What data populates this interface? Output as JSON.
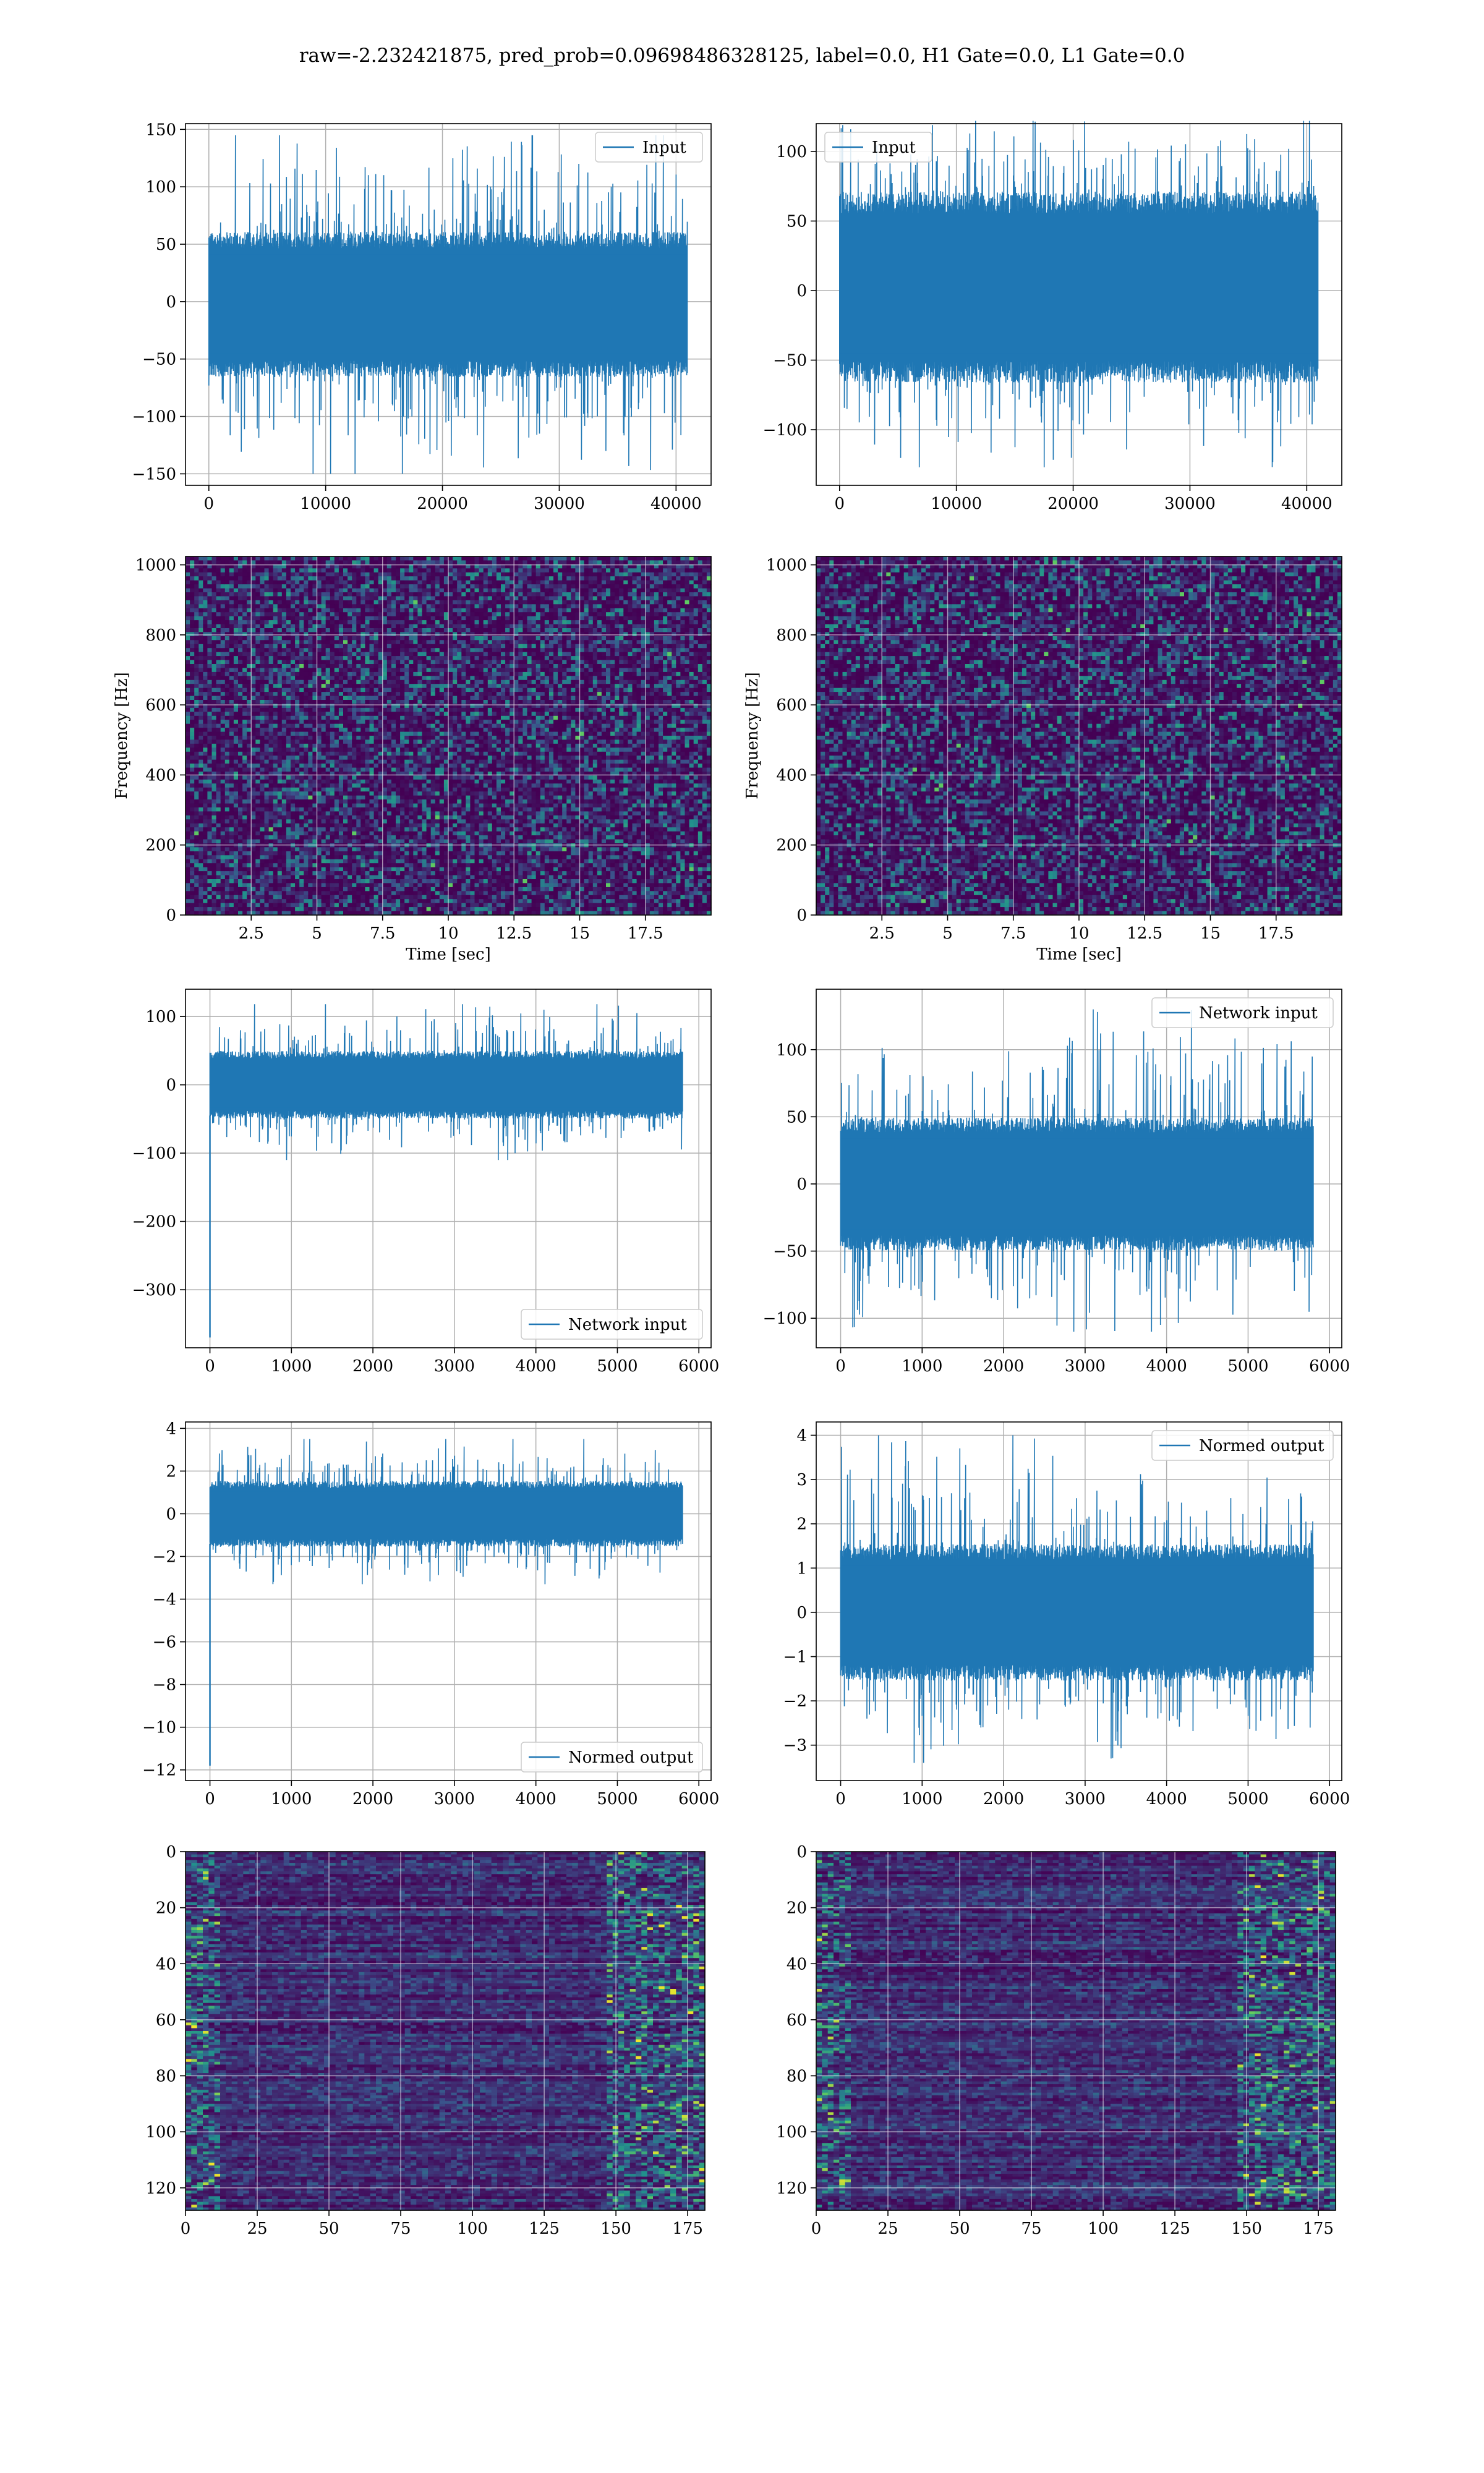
{
  "figure_title": "raw=-2.232421875, pred_prob=0.09698486328125, label=0.0, H1 Gate=0.0, L1 Gate=0.0",
  "colors": {
    "line": "#1f77b4",
    "grid": "#b0b0b0",
    "viridis_bg": "#3b1f5e"
  },
  "chart_data": [
    {
      "id": "raw-left",
      "type": "line",
      "legend": "Input",
      "legend_loc": "upper right",
      "xlim": [
        -2000,
        43000
      ],
      "ylim": [
        -160,
        155
      ],
      "xticks": [
        0,
        10000,
        20000,
        30000,
        40000
      ],
      "yticks": [
        -150,
        -100,
        -50,
        0,
        50,
        100,
        150
      ],
      "x_range": [
        0,
        40960
      ],
      "band": [
        -60,
        55
      ],
      "spike_range": [
        -150,
        145
      ],
      "grid": true
    },
    {
      "id": "raw-right",
      "type": "line",
      "legend": "Input",
      "legend_loc": "upper left",
      "xlim": [
        -2000,
        43000
      ],
      "ylim": [
        -140,
        120
      ],
      "xticks": [
        0,
        10000,
        20000,
        30000,
        40000
      ],
      "yticks": [
        -100,
        -50,
        0,
        50,
        100
      ],
      "x_range": [
        0,
        40960
      ],
      "band": [
        -60,
        65
      ],
      "spike_range": [
        -127,
        122
      ],
      "grid": true
    },
    {
      "id": "spec-left",
      "type": "heatmap",
      "xlabel": "Time [sec]",
      "ylabel": "Frequency [Hz]",
      "xlim": [
        0,
        20
      ],
      "ylim": [
        0,
        1024
      ],
      "xticks": [
        2.5,
        5.0,
        7.5,
        10.0,
        12.5,
        15.0,
        17.5
      ],
      "yticks": [
        0,
        200,
        400,
        600,
        800,
        1000
      ],
      "grid": true,
      "colormap": "viridis"
    },
    {
      "id": "spec-right",
      "type": "heatmap",
      "xlabel": "Time [sec]",
      "ylabel": "Frequency [Hz]",
      "xlim": [
        0,
        20
      ],
      "ylim": [
        0,
        1024
      ],
      "xticks": [
        2.5,
        5.0,
        7.5,
        10.0,
        12.5,
        15.0,
        17.5
      ],
      "yticks": [
        0,
        200,
        400,
        600,
        800,
        1000
      ],
      "grid": true,
      "colormap": "viridis"
    },
    {
      "id": "net-left",
      "type": "line",
      "legend": "Network input",
      "legend_loc": "lower right",
      "xlim": [
        -300,
        6150
      ],
      "ylim": [
        -385,
        140
      ],
      "xticks": [
        0,
        1000,
        2000,
        3000,
        4000,
        5000,
        6000
      ],
      "yticks": [
        -300,
        -200,
        -100,
        0,
        100
      ],
      "x_range": [
        0,
        5800
      ],
      "band": [
        -45,
        45
      ],
      "spike_range": [
        -110,
        118
      ],
      "initial_dip": -370,
      "grid": true
    },
    {
      "id": "net-right",
      "type": "line",
      "legend": "Network input",
      "legend_loc": "upper right",
      "xlim": [
        -300,
        6150
      ],
      "ylim": [
        -122,
        145
      ],
      "xticks": [
        0,
        1000,
        2000,
        3000,
        4000,
        5000,
        6000
      ],
      "yticks": [
        -100,
        -50,
        0,
        50,
        100
      ],
      "x_range": [
        0,
        5800
      ],
      "band": [
        -45,
        45
      ],
      "spike_range": [
        -110,
        130
      ],
      "grid": true
    },
    {
      "id": "norm-left",
      "type": "line",
      "legend": "Normed output",
      "legend_loc": "lower right",
      "xlim": [
        -300,
        6150
      ],
      "ylim": [
        -12.5,
        4.3
      ],
      "xticks": [
        0,
        1000,
        2000,
        3000,
        4000,
        5000,
        6000
      ],
      "yticks": [
        -12,
        -10,
        -8,
        -6,
        -4,
        -2,
        0,
        2,
        4
      ],
      "x_range": [
        0,
        5800
      ],
      "band": [
        -1.4,
        1.4
      ],
      "spike_range": [
        -3.3,
        3.5
      ],
      "initial_dip": -11.8,
      "grid": true
    },
    {
      "id": "norm-right",
      "type": "line",
      "legend": "Normed output",
      "legend_loc": "upper right",
      "xlim": [
        -300,
        6150
      ],
      "ylim": [
        -3.8,
        4.3
      ],
      "xticks": [
        0,
        1000,
        2000,
        3000,
        4000,
        5000,
        6000
      ],
      "yticks": [
        -3,
        -2,
        -1,
        0,
        1,
        2,
        3,
        4
      ],
      "x_range": [
        0,
        5800
      ],
      "band": [
        -1.4,
        1.4
      ],
      "spike_range": [
        -3.4,
        4.0
      ],
      "grid": true
    },
    {
      "id": "feat-left",
      "type": "heatmap",
      "xlim": [
        0,
        181
      ],
      "ylim": [
        128,
        0
      ],
      "xticks": [
        0,
        25,
        50,
        75,
        100,
        125,
        150,
        175
      ],
      "yticks": [
        0,
        20,
        40,
        60,
        80,
        100,
        120
      ],
      "grid": true,
      "colormap": "viridis"
    },
    {
      "id": "feat-right",
      "type": "heatmap",
      "xlim": [
        0,
        181
      ],
      "ylim": [
        128,
        0
      ],
      "xticks": [
        0,
        25,
        50,
        75,
        100,
        125,
        150,
        175
      ],
      "yticks": [
        0,
        20,
        40,
        60,
        80,
        100,
        120
      ],
      "grid": true,
      "colormap": "viridis"
    }
  ]
}
